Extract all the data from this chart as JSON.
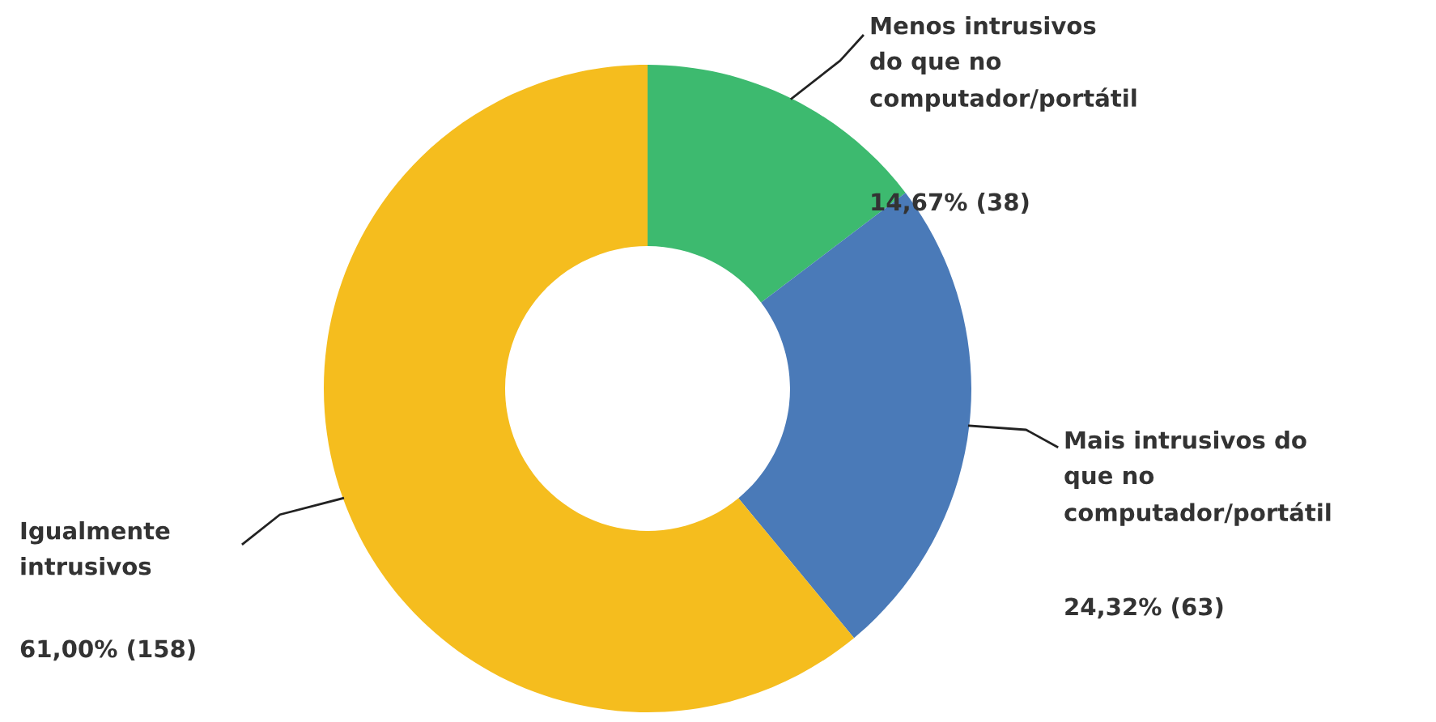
{
  "chart_data": {
    "type": "donut",
    "categories": [
      "Menos intrusivos\ndo que no\ncomputador/portátil",
      "Mais intrusivos do\nque no\ncomputador/portátil",
      "Igualmente\nintrusivos"
    ],
    "values": [
      38,
      63,
      158
    ],
    "value_labels": [
      "14,67% (38)",
      "24,32% (63)",
      "61,00% (158)"
    ],
    "colors": [
      "#3dba6f",
      "#4a7ab8",
      "#f5bd1e"
    ],
    "legend": false
  }
}
